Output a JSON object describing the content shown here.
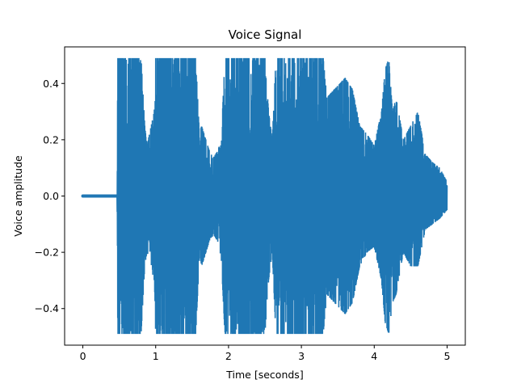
{
  "chart_data": {
    "type": "line",
    "title": "Voice Signal",
    "xlabel": "Time [seconds]",
    "ylabel": "Voice amplitude",
    "xlim": [
      -0.25,
      5.25
    ],
    "ylim": [
      -0.53,
      0.53
    ],
    "xticks": [
      0,
      1,
      2,
      3,
      4,
      5
    ],
    "xtick_labels": [
      "0",
      "1",
      "2",
      "3",
      "4",
      "5"
    ],
    "yticks": [
      -0.4,
      -0.2,
      0.0,
      0.2,
      0.4
    ],
    "ytick_labels": [
      "−0.4",
      "−0.2",
      "0.0",
      "0.2",
      "0.4"
    ],
    "grid": false,
    "series": [
      {
        "color": "#1f77b4",
        "envelope": {
          "x": [
            0.0,
            0.47,
            0.48,
            0.8,
            0.85,
            0.88,
            0.98,
            1.0,
            1.55,
            1.6,
            1.63,
            1.75,
            1.8,
            1.85,
            1.9,
            1.95,
            2.5,
            2.55,
            2.6,
            2.65,
            3.0,
            3.3,
            3.35,
            3.6,
            3.7,
            3.8,
            3.9,
            4.0,
            4.1,
            4.15,
            4.2,
            4.25,
            4.3,
            4.4,
            4.5,
            4.6,
            4.7,
            4.8,
            4.9,
            5.0
          ],
          "max": [
            0.0,
            0.0,
            0.49,
            0.49,
            0.25,
            0.18,
            0.3,
            0.49,
            0.49,
            0.22,
            0.25,
            0.15,
            0.14,
            0.16,
            0.2,
            0.49,
            0.49,
            0.3,
            0.2,
            0.49,
            0.49,
            0.49,
            0.35,
            0.42,
            0.38,
            0.25,
            0.22,
            0.18,
            0.3,
            0.45,
            0.49,
            0.3,
            0.35,
            0.2,
            0.25,
            0.3,
            0.15,
            0.12,
            0.1,
            0.05
          ],
          "min": [
            0.0,
            0.0,
            -0.49,
            -0.49,
            -0.25,
            -0.2,
            -0.3,
            -0.49,
            -0.49,
            -0.22,
            -0.25,
            -0.15,
            -0.14,
            -0.16,
            -0.22,
            -0.49,
            -0.49,
            -0.3,
            -0.2,
            -0.49,
            -0.49,
            -0.49,
            -0.35,
            -0.42,
            -0.38,
            -0.25,
            -0.2,
            -0.18,
            -0.3,
            -0.45,
            -0.49,
            -0.38,
            -0.35,
            -0.2,
            -0.25,
            -0.25,
            -0.12,
            -0.1,
            -0.08,
            -0.05
          ]
        }
      }
    ]
  }
}
